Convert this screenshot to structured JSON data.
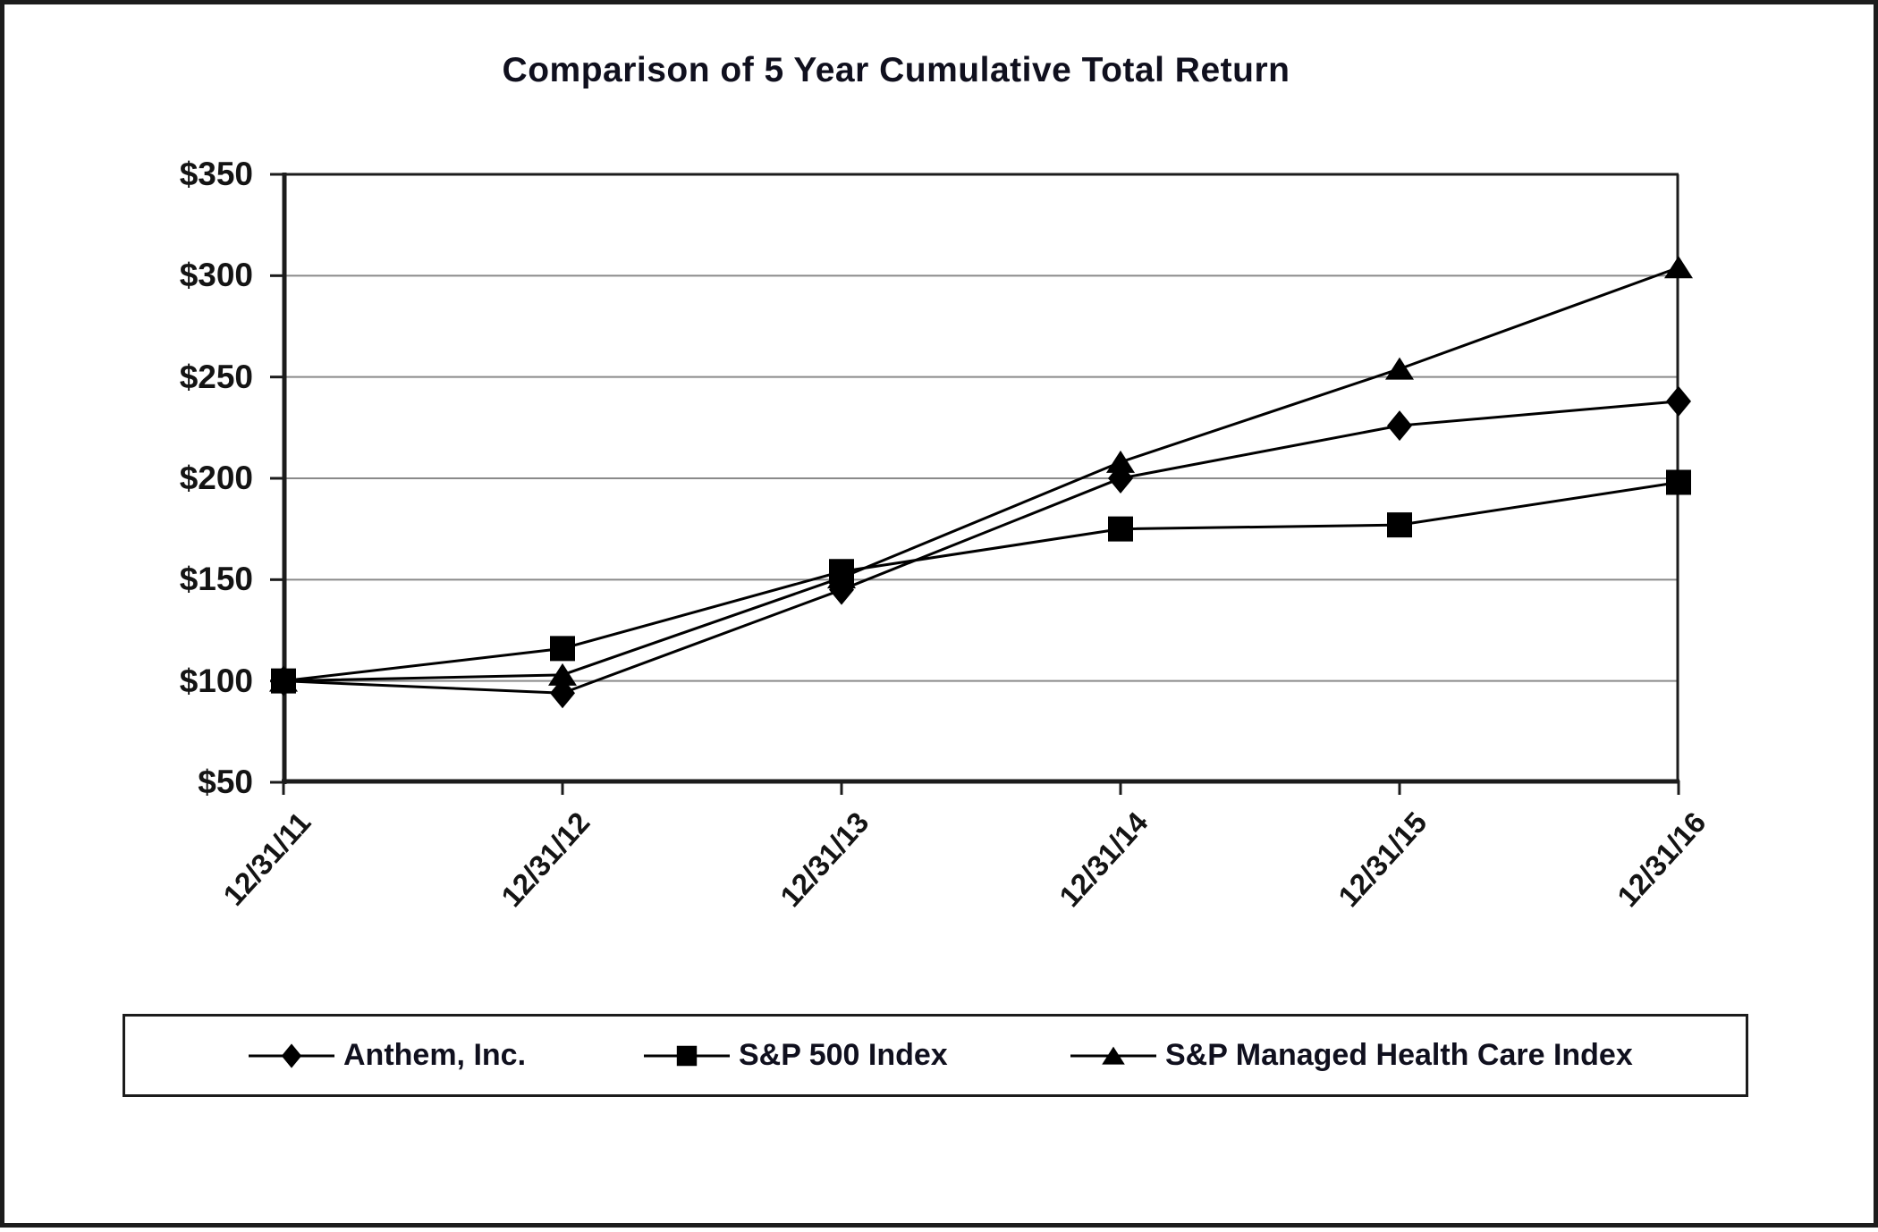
{
  "chart_data": {
    "type": "line",
    "title": "Comparison of 5 Year Cumulative Total Return",
    "categories": [
      "12/31/11",
      "12/31/12",
      "12/31/13",
      "12/31/14",
      "12/31/15",
      "12/31/16"
    ],
    "series": [
      {
        "name": "Anthem, Inc.",
        "marker": "diamond",
        "values": [
          100,
          94,
          145,
          200,
          226,
          238
        ]
      },
      {
        "name": "S&P 500 Index",
        "marker": "square",
        "values": [
          100,
          116,
          154,
          175,
          177,
          198
        ]
      },
      {
        "name": "S&P Managed Health Care Index",
        "marker": "triangle",
        "values": [
          100,
          103,
          151,
          208,
          254,
          304
        ]
      }
    ],
    "y_axis": {
      "min": 50,
      "max": 350,
      "step": 50,
      "tick_values": [
        50,
        100,
        150,
        200,
        250,
        300,
        350
      ],
      "tick_labels": [
        "$50",
        "$100",
        "$150",
        "$200",
        "$250",
        "$300",
        "$350"
      ]
    },
    "grid": true,
    "legend_position": "bottom",
    "colors": {
      "series_line": "#000000",
      "marker_fill": "#000000",
      "gridline": "#8a8a8a",
      "frame": "#1c1c1c",
      "text": "#141414",
      "title_text": "#10101e",
      "background": "#ffffff"
    }
  }
}
